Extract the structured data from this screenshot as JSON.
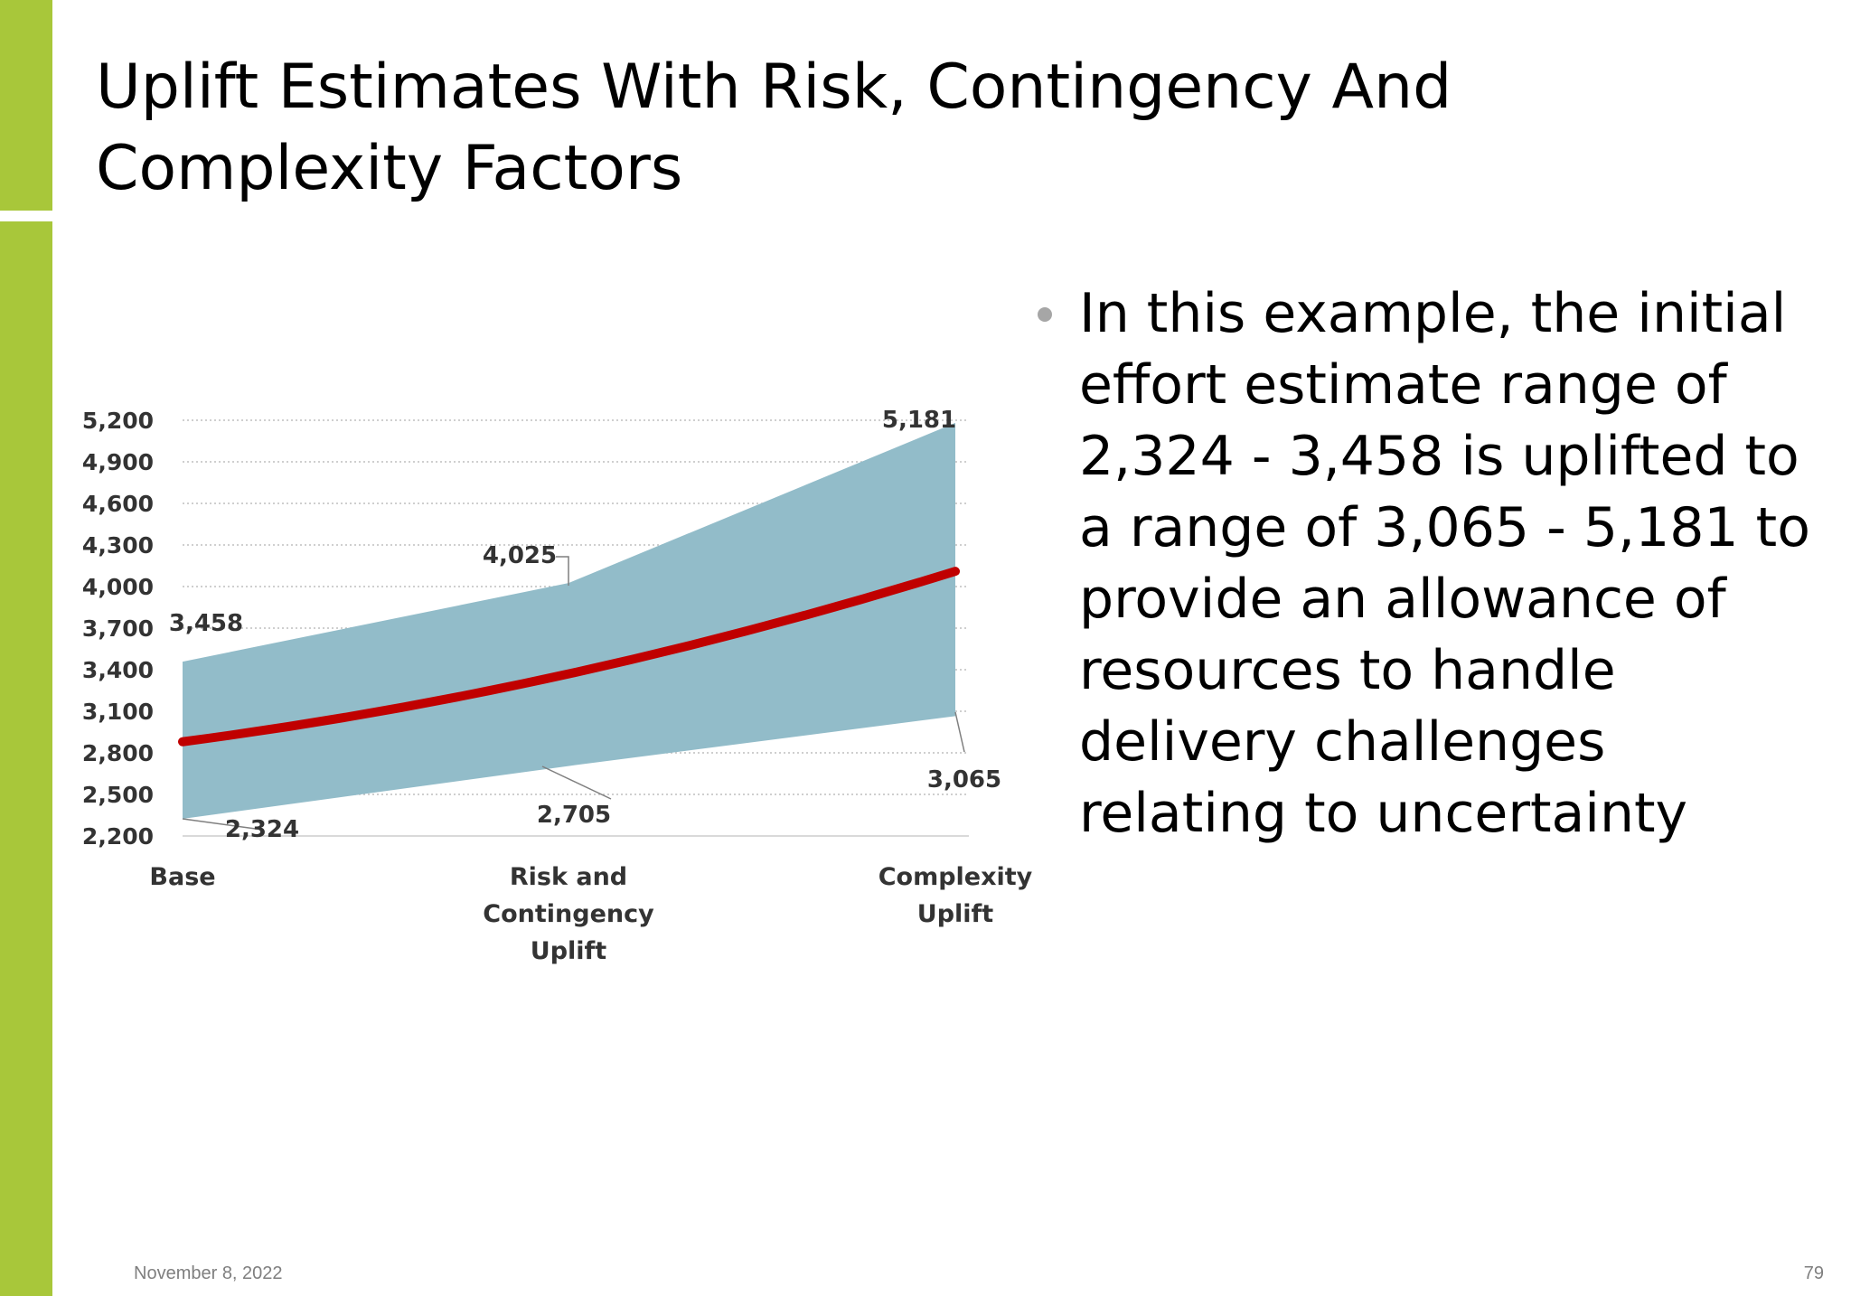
{
  "slide": {
    "title_line1": "Uplift Estimates With Risk, Contingency And",
    "title_line2": "Complexity Factors",
    "bullet": "In this example, the initial effort estimate range of 2,324 - 3,458 is uplifted to a range of 3,065 - 5,181 to provide an allowance of resources to handle delivery challenges relating to uncertainty",
    "footer_date": "November 8, 2022",
    "page_number": "79"
  },
  "colors": {
    "accent": "#a8c73a",
    "band_fill": "#92bcc9",
    "midline": "#c00000"
  },
  "chart_data": {
    "type": "area",
    "title": "",
    "xlabel": "",
    "ylabel": "",
    "categories": [
      [
        "Base"
      ],
      [
        "Risk and",
        "Contingency",
        "Uplift"
      ],
      [
        "Complexity",
        "Uplift"
      ]
    ],
    "ylim": [
      2200,
      5200
    ],
    "yticks": [
      2200,
      2500,
      2800,
      3100,
      3400,
      3700,
      4000,
      4300,
      4600,
      4900,
      5200
    ],
    "ytick_labels": [
      "2,200",
      "2,500",
      "2,800",
      "3,100",
      "3,400",
      "3,700",
      "4,000",
      "4,300",
      "4,600",
      "4,900",
      "5,200"
    ],
    "grid": true,
    "series": [
      {
        "values": [
          3458,
          4025,
          5181
        ],
        "labels": [
          "3,458",
          "4,025",
          "5,181"
        ]
      },
      {
        "values": [
          2324,
          2705,
          3065
        ],
        "labels": [
          "2,324",
          "2,705",
          "3,065"
        ]
      },
      {
        "values": [
          2880,
          3370,
          4110
        ]
      }
    ]
  }
}
